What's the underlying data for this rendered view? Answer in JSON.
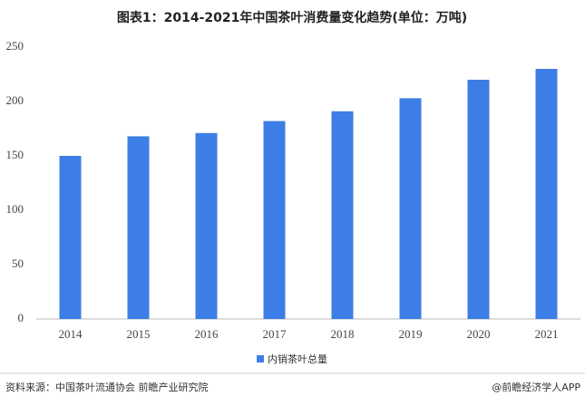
{
  "chart_data": {
    "type": "bar",
    "title": "图表1：2014-2021年中国茶叶消费量变化趋势(单位：万吨)",
    "categories": [
      "2014",
      "2015",
      "2016",
      "2017",
      "2018",
      "2019",
      "2020",
      "2021"
    ],
    "series": [
      {
        "name": "内销茶叶总量",
        "color": "#3d7ee6",
        "values": [
          150,
          168,
          171,
          182,
          191,
          203,
          220,
          230
        ]
      }
    ],
    "ylim": [
      0,
      250
    ],
    "yticks": [
      0,
      50,
      100,
      150,
      200,
      250
    ],
    "grid": false,
    "legend": "bottom"
  },
  "footer": {
    "source": "资料来源：中国茶叶流通协会 前瞻产业研究院",
    "credit": "@前瞻经济学人APP"
  }
}
